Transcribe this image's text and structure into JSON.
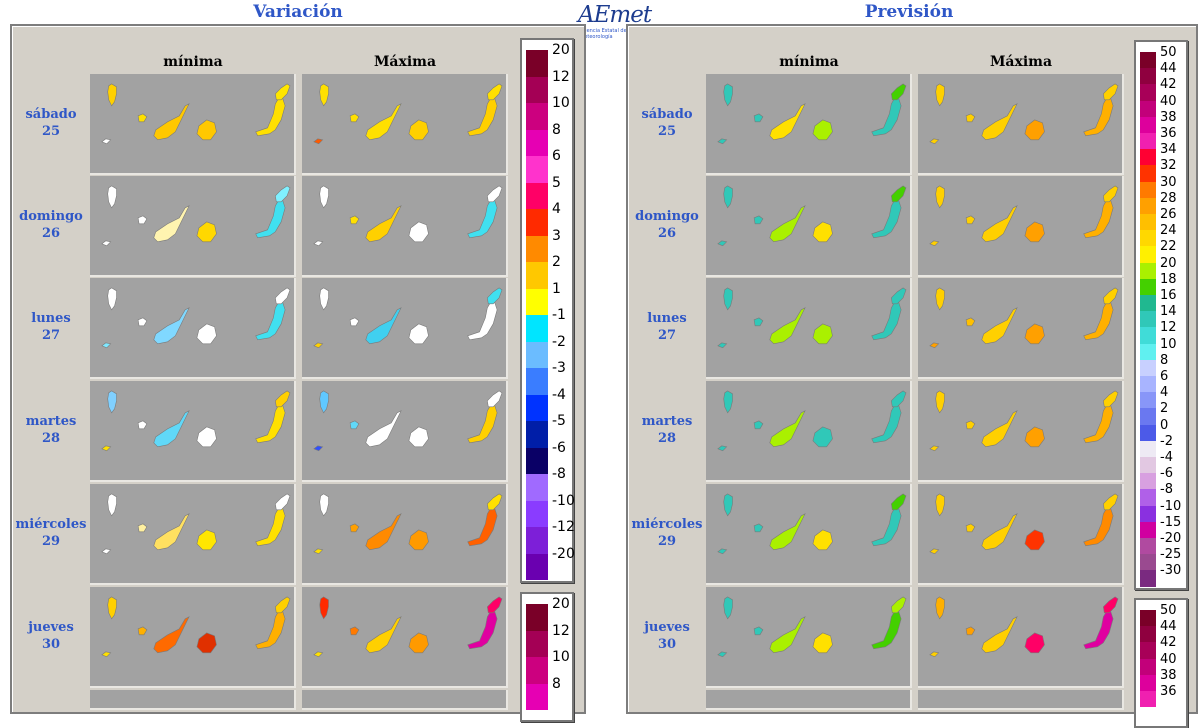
{
  "header": {
    "left_title": "Variación",
    "right_title": "Previsión",
    "logo_text": "AEmet",
    "logo_subtitle": "Agencia Estatal de Meteorología"
  },
  "columns": [
    "mínima",
    "Máxima"
  ],
  "days": [
    {
      "name": "sábado",
      "num": "25"
    },
    {
      "name": "domingo",
      "num": "26"
    },
    {
      "name": "lunes",
      "num": "27"
    },
    {
      "name": "martes",
      "num": "28"
    },
    {
      "name": "miércoles",
      "num": "29"
    },
    {
      "name": "jueves",
      "num": "30"
    }
  ],
  "colors": {
    "panel_bg": "#d4d0c8",
    "map_bg": "#a2a2a2",
    "title": "#2f57c7"
  },
  "variation_legend": [
    {
      "label": "20",
      "color": "#7a0028"
    },
    {
      "label": "12",
      "color": "#a40055"
    },
    {
      "label": "10",
      "color": "#cc007f"
    },
    {
      "label": "8",
      "color": "#e600b3"
    },
    {
      "label": "6",
      "color": "#ff33cc"
    },
    {
      "label": "5",
      "color": "#ff0066"
    },
    {
      "label": "4",
      "color": "#ff2a00"
    },
    {
      "label": "3",
      "color": "#ff8a00"
    },
    {
      "label": "2",
      "color": "#ffc800"
    },
    {
      "label": "1",
      "color": "#ffff00"
    },
    {
      "label": "-1",
      "color": "#00e5ff"
    },
    {
      "label": "-2",
      "color": "#6bbcff"
    },
    {
      "label": "-3",
      "color": "#3a7dff"
    },
    {
      "label": "-4",
      "color": "#0033ff"
    },
    {
      "label": "-5",
      "color": "#001ea8"
    },
    {
      "label": "-6",
      "color": "#0a0066"
    },
    {
      "label": "-8",
      "color": "#a06aff"
    },
    {
      "label": "-10",
      "color": "#8a3cff"
    },
    {
      "label": "-12",
      "color": "#7d1fd8"
    },
    {
      "label": "-20",
      "color": "#6a00b0"
    }
  ],
  "variation_legend_2": [
    {
      "label": "20",
      "color": "#7a0028"
    },
    {
      "label": "12",
      "color": "#a40055"
    },
    {
      "label": "10",
      "color": "#cc007f"
    },
    {
      "label": "8",
      "color": "#e600b3"
    }
  ],
  "forecast_legend": [
    {
      "label": "50",
      "color": "#7a0028"
    },
    {
      "label": "44",
      "color": "#8f003f"
    },
    {
      "label": "42",
      "color": "#a80058"
    },
    {
      "label": "40",
      "color": "#c2007a"
    },
    {
      "label": "38",
      "color": "#dd009c"
    },
    {
      "label": "36",
      "color": "#f020b0"
    },
    {
      "label": "34",
      "color": "#ff0033"
    },
    {
      "label": "32",
      "color": "#ff3300"
    },
    {
      "label": "30",
      "color": "#ff7a00"
    },
    {
      "label": "28",
      "color": "#ffa000"
    },
    {
      "label": "26",
      "color": "#ffbf00"
    },
    {
      "label": "24",
      "color": "#ffd800"
    },
    {
      "label": "22",
      "color": "#fff000"
    },
    {
      "label": "20",
      "color": "#aaf000"
    },
    {
      "label": "18",
      "color": "#44d000"
    },
    {
      "label": "16",
      "color": "#20b890"
    },
    {
      "label": "14",
      "color": "#30c8b8"
    },
    {
      "label": "12",
      "color": "#40dcd8"
    },
    {
      "label": "10",
      "color": "#60f0f0"
    },
    {
      "label": "8",
      "color": "#c8d0ff"
    },
    {
      "label": "6",
      "color": "#a8b4ff"
    },
    {
      "label": "4",
      "color": "#8896f8"
    },
    {
      "label": "2",
      "color": "#6a78f0"
    },
    {
      "label": "0",
      "color": "#4c5ae8"
    },
    {
      "label": "-2",
      "color": "#eeeaf4"
    },
    {
      "label": "-4",
      "color": "#e2c8e2"
    },
    {
      "label": "-6",
      "color": "#d8a0e0"
    },
    {
      "label": "-8",
      "color": "#b060e8"
    },
    {
      "label": "-10",
      "color": "#8a30e0"
    },
    {
      "label": "-15",
      "color": "#d000a0"
    },
    {
      "label": "-20",
      "color": "#b04aa0"
    },
    {
      "label": "-25",
      "color": "#9a4a90"
    },
    {
      "label": "-30",
      "color": "#7a2a80"
    }
  ],
  "forecast_legend_2": [
    {
      "label": "50",
      "color": "#7a0028"
    },
    {
      "label": "44",
      "color": "#8f003f"
    },
    {
      "label": "42",
      "color": "#a80058"
    },
    {
      "label": "40",
      "color": "#c2007a"
    },
    {
      "label": "38",
      "color": "#dd009c"
    },
    {
      "label": "36",
      "color": "#f020b0"
    }
  ],
  "maps": {
    "var_min": [
      [
        "#ffd000",
        "#ffffff",
        "#ffe000",
        "#ffc800",
        "#ffc800",
        "#ffe000",
        "#ffe600"
      ],
      [
        "#ffffff",
        "#ffffff",
        "#ffffff",
        "#fff4b0",
        "#ffd800",
        "#40e0f0",
        "#80f0ff"
      ],
      [
        "#ffffff",
        "#80e8ff",
        "#ffffff",
        "#80d8ff",
        "#ffffff",
        "#40e0f0",
        "#ffffff"
      ],
      [
        "#80d0ff",
        "#ffe000",
        "#ffffff",
        "#60d8f8",
        "#ffffff",
        "#ffe000",
        "#ffd000"
      ],
      [
        "#ffffff",
        "#ffffff",
        "#fff0a0",
        "#ffe060",
        "#ffe600",
        "#ffe000",
        "#ffffff"
      ],
      [
        "#ffd000",
        "#ffe000",
        "#ffb000",
        "#ff6a00",
        "#e03000",
        "#ffb000",
        "#ffd000"
      ]
    ],
    "var_max": [
      [
        "#ffe000",
        "#ff5a00",
        "#ffe000",
        "#ffe000",
        "#ffd000",
        "#ffd000",
        "#ffe000"
      ],
      [
        "#ffffff",
        "#ffffff",
        "#ffe000",
        "#ffd000",
        "#ffffff",
        "#40e0f0",
        "#ffffff"
      ],
      [
        "#ffffff",
        "#ffd000",
        "#ffffff",
        "#40d0f0",
        "#ffffff",
        "#ffffff",
        "#40e0f0"
      ],
      [
        "#60c8ff",
        "#3050ff",
        "#60d8f8",
        "#ffffff",
        "#ffffff",
        "#ffd000",
        "#ffffff"
      ],
      [
        "#ffffff",
        "#ffe000",
        "#ffa000",
        "#ff8a00",
        "#ff9a00",
        "#ff6000",
        "#ffe000"
      ],
      [
        "#ff2a00",
        "#ffe000",
        "#ff7a00",
        "#ffd000",
        "#ff9a00",
        "#e000a0",
        "#ff0066"
      ]
    ],
    "fc_min": [
      [
        "#30c8b8",
        "#30c8b8",
        "#30c8b8",
        "#ffe000",
        "#aaf000",
        "#30c8b8",
        "#44d000"
      ],
      [
        "#30c8b8",
        "#30c8b8",
        "#30c8b8",
        "#aaf000",
        "#ffe000",
        "#30c8b8",
        "#44d000"
      ],
      [
        "#30c8b8",
        "#30c8b8",
        "#30c8b8",
        "#aaf000",
        "#aaf000",
        "#30c8b8",
        "#30c8b8"
      ],
      [
        "#30c8b8",
        "#30c8b8",
        "#30c8b8",
        "#aaf000",
        "#30c8b8",
        "#30c8b8",
        "#30c8b8"
      ],
      [
        "#30c8b8",
        "#30c8b8",
        "#30c8b8",
        "#aaf000",
        "#ffe000",
        "#30c8b8",
        "#44d000"
      ],
      [
        "#30c8b8",
        "#30c8b8",
        "#30c8b8",
        "#aaf000",
        "#ffe000",
        "#44d000",
        "#aaf000"
      ]
    ],
    "fc_max": [
      [
        "#ffd000",
        "#ffd000",
        "#ffd000",
        "#ffd000",
        "#ffa000",
        "#ffb000",
        "#ffd000"
      ],
      [
        "#ffd000",
        "#ffd000",
        "#ffd000",
        "#ffd000",
        "#ffa000",
        "#ffb000",
        "#ffd000"
      ],
      [
        "#ffd000",
        "#ffa000",
        "#ffc000",
        "#ffd000",
        "#ffa000",
        "#ffb000",
        "#ffd000"
      ],
      [
        "#ffd000",
        "#ffd000",
        "#ffd000",
        "#ffd000",
        "#ffa000",
        "#ffb000",
        "#ffd000"
      ],
      [
        "#ffd000",
        "#ffd000",
        "#ffd000",
        "#ffd000",
        "#ff3300",
        "#ff8a00",
        "#ffd000"
      ],
      [
        "#ffb000",
        "#ffd000",
        "#ffa000",
        "#ffd000",
        "#ff0066",
        "#e000a0",
        "#ff0066"
      ]
    ]
  }
}
